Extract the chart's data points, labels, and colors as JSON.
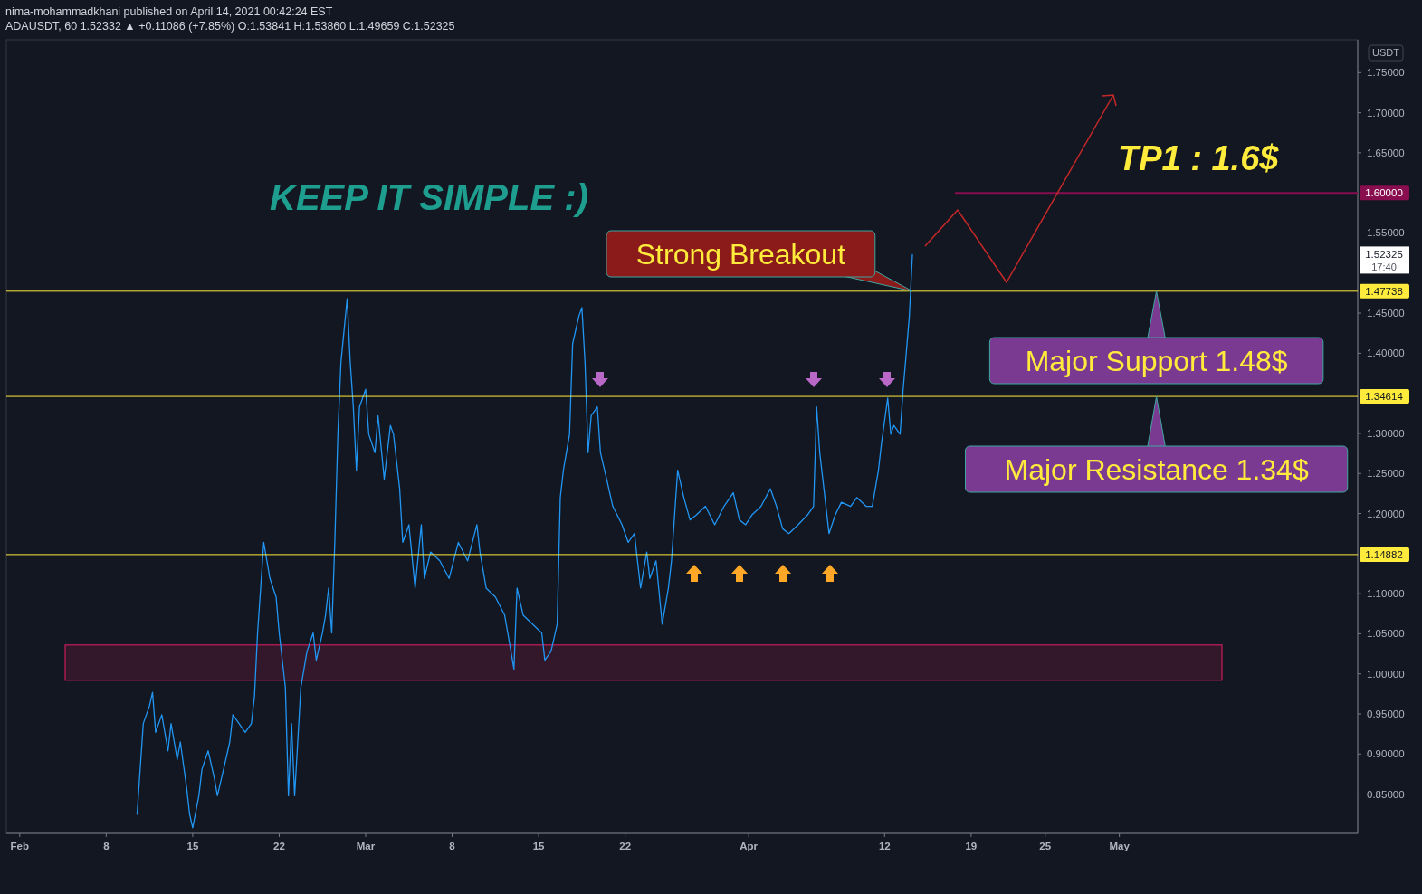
{
  "chart_data": {
    "type": "line",
    "title": "nima-mohammadkhani published on April 14, 2021 00:42:24 EST",
    "subtitle": "ADAUSDT, 60  1.52332 ▲ +0.11086 (+7.85%) O:1.53841 H:1.53860 L:1.49659 C:1.52325",
    "ylabel": "USDT",
    "xlim": [
      "2021-01-30T22:00",
      "2021-05-20T07:00"
    ],
    "ylim": [
      0.801,
      1.791
    ],
    "xticks": [
      {
        "value": "2021-02-01",
        "label": "Feb"
      },
      {
        "value": "2021-02-08",
        "label": "8"
      },
      {
        "value": "2021-02-15",
        "label": "15"
      },
      {
        "value": "2021-02-22",
        "label": "22"
      },
      {
        "value": "2021-03-01",
        "label": "Mar"
      },
      {
        "value": "2021-03-08",
        "label": "8"
      },
      {
        "value": "2021-03-15",
        "label": "15"
      },
      {
        "value": "2021-03-22",
        "label": "22"
      },
      {
        "value": "2021-04-01",
        "label": "Apr"
      },
      {
        "value": "2021-04-12",
        "label": "12"
      },
      {
        "value": "2021-04-19",
        "label": "19"
      },
      {
        "value": "2021-04-25",
        "label": "25"
      },
      {
        "value": "2021-05-01",
        "label": "May"
      }
    ],
    "yticks": [
      {
        "value": 0.85,
        "label": "0.85000"
      },
      {
        "value": 0.9,
        "label": "0.90000"
      },
      {
        "value": 0.95,
        "label": "0.95000"
      },
      {
        "value": 1.0,
        "label": "1.00000"
      },
      {
        "value": 1.05,
        "label": "1.05000"
      },
      {
        "value": 1.1,
        "label": "1.10000"
      },
      {
        "value": 1.2,
        "label": "1.20000"
      },
      {
        "value": 1.25,
        "label": "1.25000"
      },
      {
        "value": 1.3,
        "label": "1.30000"
      },
      {
        "value": 1.4,
        "label": "1.40000"
      },
      {
        "value": 1.45,
        "label": "1.45000"
      },
      {
        "value": 1.55,
        "label": "1.55000"
      },
      {
        "value": 1.65,
        "label": "1.65000"
      },
      {
        "value": 1.7,
        "label": "1.70000"
      },
      {
        "value": 1.75,
        "label": "1.75000"
      }
    ],
    "series": [
      {
        "color": "#2196f3",
        "x": [
          "2021-02-10T12:00",
          "2021-02-11T00:00",
          "2021-02-11T12:00",
          "2021-02-11T18:00",
          "2021-02-12T00:00",
          "2021-02-12T12:00",
          "2021-02-13T00:00",
          "2021-02-13T06:00",
          "2021-02-13T18:00",
          "2021-02-14T00:00",
          "2021-02-14T12:00",
          "2021-02-14T18:00",
          "2021-02-15T00:00",
          "2021-02-15T12:00",
          "2021-02-15T18:00",
          "2021-02-16T06:00",
          "2021-02-16T18:00",
          "2021-02-17T00:00",
          "2021-02-17T12:00",
          "2021-02-18T00:00",
          "2021-02-18T06:00",
          "2021-02-18T18:00",
          "2021-02-19T06:00",
          "2021-02-19T18:00",
          "2021-02-20T00:00",
          "2021-02-20T06:00",
          "2021-02-20T12:00",
          "2021-02-20T18:00",
          "2021-02-21T06:00",
          "2021-02-21T18:00",
          "2021-02-22T00:00",
          "2021-02-22T12:00",
          "2021-02-22T18:00",
          "2021-02-23T00:00",
          "2021-02-23T06:00",
          "2021-02-23T12:00",
          "2021-02-23T18:00",
          "2021-02-24T06:00",
          "2021-02-24T18:00",
          "2021-02-25T00:00",
          "2021-02-25T12:00",
          "2021-02-25T18:00",
          "2021-02-26T00:00",
          "2021-02-26T06:00",
          "2021-02-26T12:00",
          "2021-02-26T18:00",
          "2021-02-27T00:00",
          "2021-02-27T12:00",
          "2021-02-27T18:00",
          "2021-02-28T00:00",
          "2021-02-28T06:00",
          "2021-02-28T12:00",
          "2021-03-01T00:00",
          "2021-03-01T06:00",
          "2021-03-01T18:00",
          "2021-03-02T00:00",
          "2021-03-02T12:00",
          "2021-03-03T00:00",
          "2021-03-03T06:00",
          "2021-03-03T18:00",
          "2021-03-04T00:00",
          "2021-03-04T12:00",
          "2021-03-05T00:00",
          "2021-03-05T12:00",
          "2021-03-05T18:00",
          "2021-03-06T06:00",
          "2021-03-07T00:00",
          "2021-03-07T18:00",
          "2021-03-08T12:00",
          "2021-03-09T06:00",
          "2021-03-10T00:00",
          "2021-03-10T06:00",
          "2021-03-10T18:00",
          "2021-03-11T12:00",
          "2021-03-12T06:00",
          "2021-03-12T12:00",
          "2021-03-13T00:00",
          "2021-03-13T06:00",
          "2021-03-13T18:00",
          "2021-03-14T12:00",
          "2021-03-15T06:00",
          "2021-03-15T12:00",
          "2021-03-16T00:00",
          "2021-03-16T12:00",
          "2021-03-16T18:00",
          "2021-03-17T00:00",
          "2021-03-17T12:00",
          "2021-03-17T18:00",
          "2021-03-18T06:00",
          "2021-03-18T12:00",
          "2021-03-18T18:00",
          "2021-03-19T00:00",
          "2021-03-19T06:00",
          "2021-03-19T18:00",
          "2021-03-20T00:00",
          "2021-03-20T12:00",
          "2021-03-21T00:00",
          "2021-03-21T18:00",
          "2021-03-22T06:00",
          "2021-03-22T18:00",
          "2021-03-23T06:00",
          "2021-03-23T18:00",
          "2021-03-24T00:00",
          "2021-03-24T12:00",
          "2021-03-25T00:00",
          "2021-03-25T12:00",
          "2021-03-25T18:00",
          "2021-03-26T06:00",
          "2021-03-26T18:00",
          "2021-03-27T06:00",
          "2021-03-27T18:00",
          "2021-03-28T12:00",
          "2021-03-29T06:00",
          "2021-03-30T00:00",
          "2021-03-30T18:00",
          "2021-03-31T06:00",
          "2021-03-31T18:00",
          "2021-04-01T06:00",
          "2021-04-02T00:00",
          "2021-04-02T18:00",
          "2021-04-03T06:00",
          "2021-04-03T18:00",
          "2021-04-04T06:00",
          "2021-04-05T00:00",
          "2021-04-05T18:00",
          "2021-04-06T06:00",
          "2021-04-06T12:00",
          "2021-04-06T18:00",
          "2021-04-07T06:00",
          "2021-04-07T12:00",
          "2021-04-08T00:00",
          "2021-04-08T12:00",
          "2021-04-09T06:00",
          "2021-04-09T18:00",
          "2021-04-10T12:00",
          "2021-04-11T00:00",
          "2021-04-11T12:00",
          "2021-04-11T18:00",
          "2021-04-12T06:00",
          "2021-04-12T12:00",
          "2021-04-12T18:00",
          "2021-04-13T06:00",
          "2021-04-13T12:00",
          "2021-04-13T18:00",
          "2021-04-14T00:00",
          "2021-04-14T06:00"
        ],
        "values": [
          0.825,
          0.938,
          0.96,
          0.977,
          0.927,
          0.949,
          0.904,
          0.938,
          0.893,
          0.915,
          0.859,
          0.825,
          0.808,
          0.848,
          0.881,
          0.904,
          0.87,
          0.848,
          0.881,
          0.915,
          0.949,
          0.938,
          0.927,
          0.938,
          0.972,
          1.051,
          1.107,
          1.164,
          1.119,
          1.096,
          1.051,
          0.983,
          0.848,
          0.938,
          0.848,
          0.915,
          0.983,
          1.028,
          1.051,
          1.017,
          1.051,
          1.073,
          1.107,
          1.051,
          1.164,
          1.299,
          1.389,
          1.468,
          1.389,
          1.333,
          1.254,
          1.333,
          1.355,
          1.299,
          1.276,
          1.322,
          1.243,
          1.31,
          1.299,
          1.231,
          1.164,
          1.186,
          1.107,
          1.186,
          1.119,
          1.152,
          1.141,
          1.119,
          1.164,
          1.141,
          1.186,
          1.152,
          1.107,
          1.096,
          1.073,
          1.051,
          1.006,
          1.107,
          1.073,
          1.062,
          1.051,
          1.017,
          1.028,
          1.062,
          1.22,
          1.254,
          1.299,
          1.412,
          1.446,
          1.457,
          1.389,
          1.276,
          1.322,
          1.333,
          1.276,
          1.243,
          1.209,
          1.186,
          1.164,
          1.175,
          1.107,
          1.152,
          1.119,
          1.141,
          1.062,
          1.107,
          1.141,
          1.254,
          1.22,
          1.192,
          1.198,
          1.209,
          1.186,
          1.209,
          1.226,
          1.192,
          1.186,
          1.198,
          1.209,
          1.231,
          1.209,
          1.181,
          1.175,
          1.186,
          1.198,
          1.209,
          1.333,
          1.276,
          1.209,
          1.175,
          1.198,
          1.214,
          1.209,
          1.22,
          1.209,
          1.209,
          1.254,
          1.288,
          1.344,
          1.299,
          1.31,
          1.299,
          1.355,
          1.4,
          1.446,
          1.523
        ]
      }
    ],
    "ref_lines": [
      {
        "axis": "y",
        "value": 1.6,
        "label": "1.60000",
        "color": "#880e4f"
      },
      {
        "axis": "y",
        "value": 1.47738,
        "label": "1.47738",
        "color": "#ffeb3b"
      },
      {
        "axis": "y",
        "value": 1.34614,
        "label": "1.34614",
        "color": "#ffeb3b"
      },
      {
        "axis": "y",
        "value": 1.14882,
        "label": "1.14882",
        "color": "#ffeb3b"
      }
    ],
    "bands": [
      {
        "axis": "y",
        "from": 0.992,
        "to": 1.036,
        "color": "#e91e63"
      }
    ],
    "annotations": [
      "KEEP IT SIMPLE :)",
      "TP1 : 1.6$",
      {
        "text": "Strong Breakout",
        "x": "2021-04-14T06:00",
        "y": 1.47738
      },
      {
        "text": "Major Support 1.48$",
        "x": "2021-05-04",
        "y": 1.47738
      },
      {
        "text": "Major Resistance 1.34$",
        "x": "2021-05-04",
        "y": 1.34614
      },
      "1.52325",
      "17:40"
    ]
  }
}
